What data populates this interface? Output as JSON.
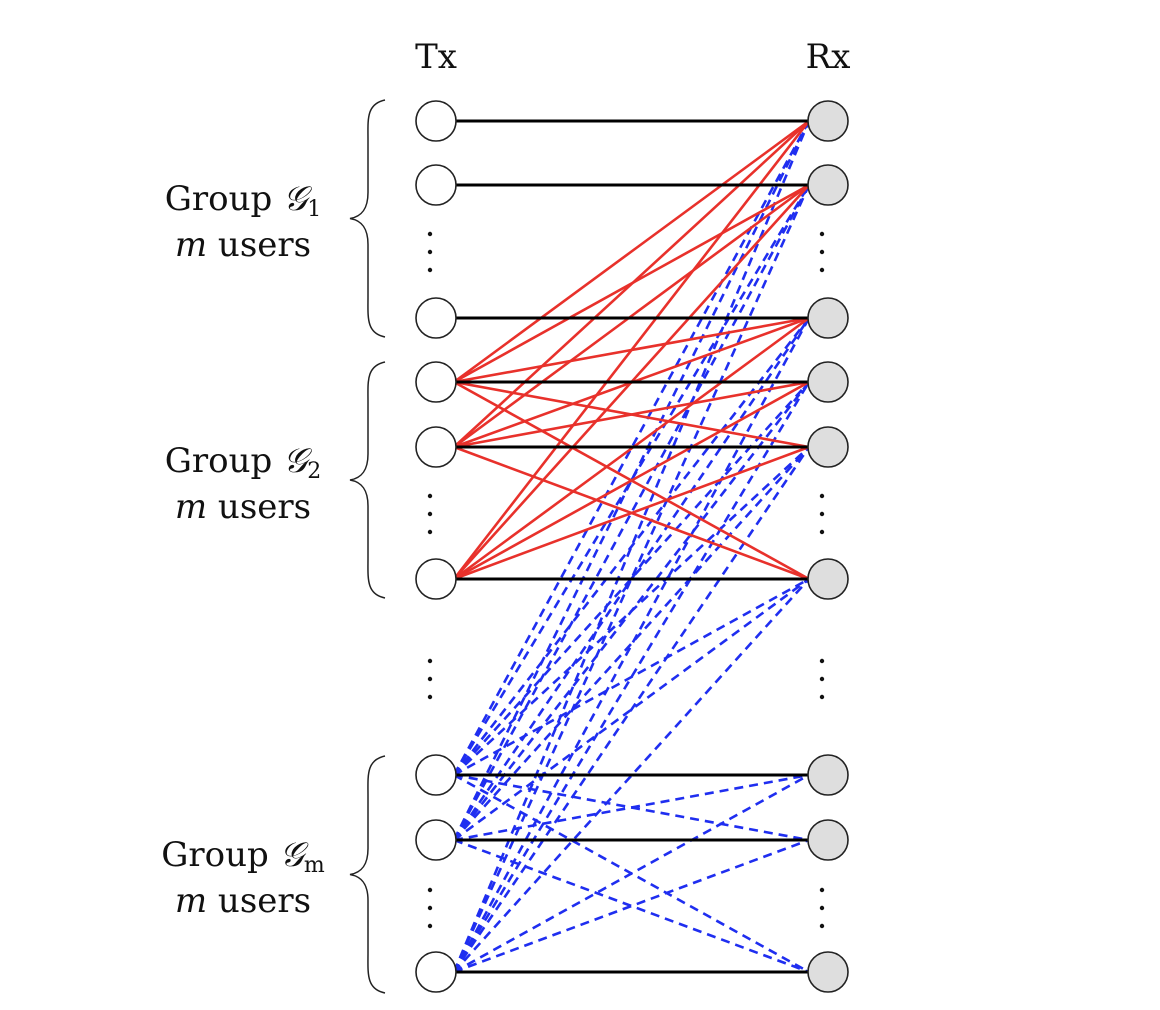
{
  "header": {
    "tx_label": "Tx",
    "rx_label": "Rx"
  },
  "groups": [
    {
      "prefix": "Group ",
      "symbol": "𝒢",
      "subscript": "1",
      "count_var": "m",
      "count_word": " users"
    },
    {
      "prefix": "Group ",
      "symbol": "𝒢",
      "subscript": "2",
      "count_var": "m",
      "count_word": " users"
    },
    {
      "prefix": "Group ",
      "symbol": "𝒢",
      "subscript": "m",
      "count_var": "m",
      "count_word": " users"
    }
  ],
  "colors": {
    "direct_link": "#000000",
    "intra_group_interference": "#e8312b",
    "inter_group_interference": "#1f2ef0",
    "tx_node_fill": "#ffffff",
    "rx_node_fill": "#dedede",
    "node_stroke": "#222222"
  }
}
